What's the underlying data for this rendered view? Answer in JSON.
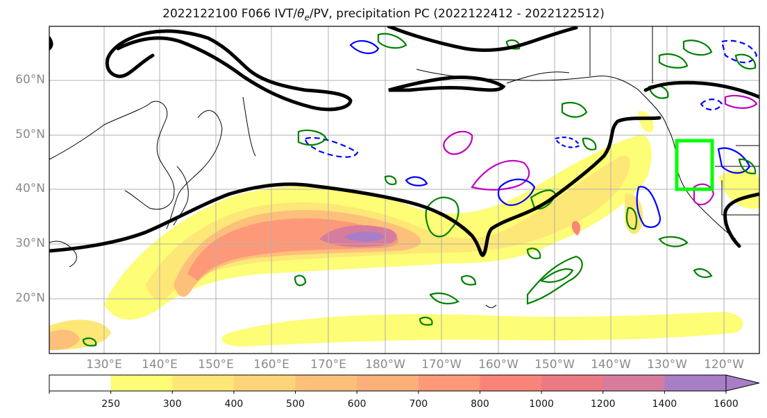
{
  "title": {
    "prefix": "2022122100 F066 IVT/",
    "theta_symbol": "θ",
    "theta_sub": "e",
    "suffix": "/PV, precipitation PC (2022122412 - 2022122512)"
  },
  "map": {
    "lat_labels": [
      "60°N",
      "50°N",
      "40°N",
      "30°N",
      "20°N"
    ],
    "lon_labels": [
      "130°E",
      "140°E",
      "150°E",
      "160°E",
      "170°E",
      "180°W",
      "170°W",
      "160°W",
      "150°W",
      "140°W",
      "130°W",
      "120°W"
    ],
    "gridlines": true,
    "highlight_box_color": "#00ff00",
    "contour_colors": {
      "pv": "#000000",
      "theta_e": "#008000",
      "precip_pc_blue": "#0000ff",
      "precip_pc_magenta": "#c000c0"
    }
  },
  "colorbar": {
    "ticks": [
      "250",
      "300",
      "400",
      "500",
      "600",
      "700",
      "800",
      "1000",
      "1200",
      "1400",
      "1600"
    ],
    "colors": [
      "#ffffff",
      "#fdfd76",
      "#fde777",
      "#fdd47a",
      "#fdc07b",
      "#fdb07a",
      "#fd9978",
      "#f98479",
      "#ec7a85",
      "#d77c9c",
      "#a87ec6"
    ],
    "extend": "max"
  }
}
